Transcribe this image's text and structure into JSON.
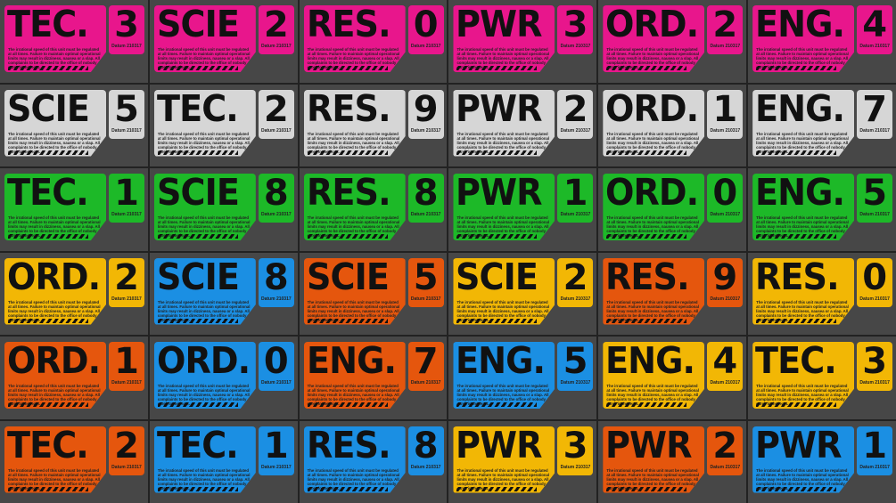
{
  "colors": {
    "magenta": "#e8168c",
    "gray": "#d6d6d6",
    "green": "#1db928",
    "yellow": "#f2b705",
    "blue": "#1b8fe3",
    "orange": "#e5560d"
  },
  "body_text": "The irrational speed of this unit must be regulated at all times. Failure to maintain optimal operational limits may result in dizziness, nausea or a slap. All complaints to be directed to the office of nobody cares in the least.",
  "datum": "Datum 210317",
  "tiles": [
    {
      "label": "TEC.",
      "number": "3",
      "color": "magenta"
    },
    {
      "label": "SCIE",
      "number": "2",
      "color": "magenta"
    },
    {
      "label": "RES.",
      "number": "0",
      "color": "magenta"
    },
    {
      "label": "PWR",
      "number": "3",
      "color": "magenta"
    },
    {
      "label": "ORD.",
      "number": "2",
      "color": "magenta"
    },
    {
      "label": "ENG.",
      "number": "4",
      "color": "magenta"
    },
    {
      "label": "SCIE",
      "number": "5",
      "color": "gray"
    },
    {
      "label": "TEC.",
      "number": "2",
      "color": "gray"
    },
    {
      "label": "RES.",
      "number": "9",
      "color": "gray"
    },
    {
      "label": "PWR",
      "number": "2",
      "color": "gray"
    },
    {
      "label": "ORD.",
      "number": "1",
      "color": "gray"
    },
    {
      "label": "ENG.",
      "number": "7",
      "color": "gray"
    },
    {
      "label": "TEC.",
      "number": "1",
      "color": "green"
    },
    {
      "label": "SCIE",
      "number": "8",
      "color": "green"
    },
    {
      "label": "RES.",
      "number": "8",
      "color": "green"
    },
    {
      "label": "PWR",
      "number": "1",
      "color": "green"
    },
    {
      "label": "ORD.",
      "number": "0",
      "color": "green"
    },
    {
      "label": "ENG.",
      "number": "5",
      "color": "green"
    },
    {
      "label": "ORD.",
      "number": "2",
      "color": "yellow"
    },
    {
      "label": "SCIE",
      "number": "8",
      "color": "blue"
    },
    {
      "label": "SCIE",
      "number": "5",
      "color": "orange"
    },
    {
      "label": "SCIE",
      "number": "2",
      "color": "yellow"
    },
    {
      "label": "RES.",
      "number": "9",
      "color": "orange"
    },
    {
      "label": "RES.",
      "number": "0",
      "color": "yellow"
    },
    {
      "label": "ORD.",
      "number": "1",
      "color": "orange"
    },
    {
      "label": "ORD.",
      "number": "0",
      "color": "blue"
    },
    {
      "label": "ENG.",
      "number": "7",
      "color": "orange"
    },
    {
      "label": "ENG.",
      "number": "5",
      "color": "blue"
    },
    {
      "label": "ENG.",
      "number": "4",
      "color": "yellow"
    },
    {
      "label": "TEC.",
      "number": "3",
      "color": "yellow"
    },
    {
      "label": "TEC.",
      "number": "2",
      "color": "orange"
    },
    {
      "label": "TEC.",
      "number": "1",
      "color": "blue"
    },
    {
      "label": "RES.",
      "number": "8",
      "color": "blue"
    },
    {
      "label": "PWR",
      "number": "3",
      "color": "yellow"
    },
    {
      "label": "PWR",
      "number": "2",
      "color": "orange"
    },
    {
      "label": "PWR",
      "number": "1",
      "color": "blue"
    }
  ]
}
